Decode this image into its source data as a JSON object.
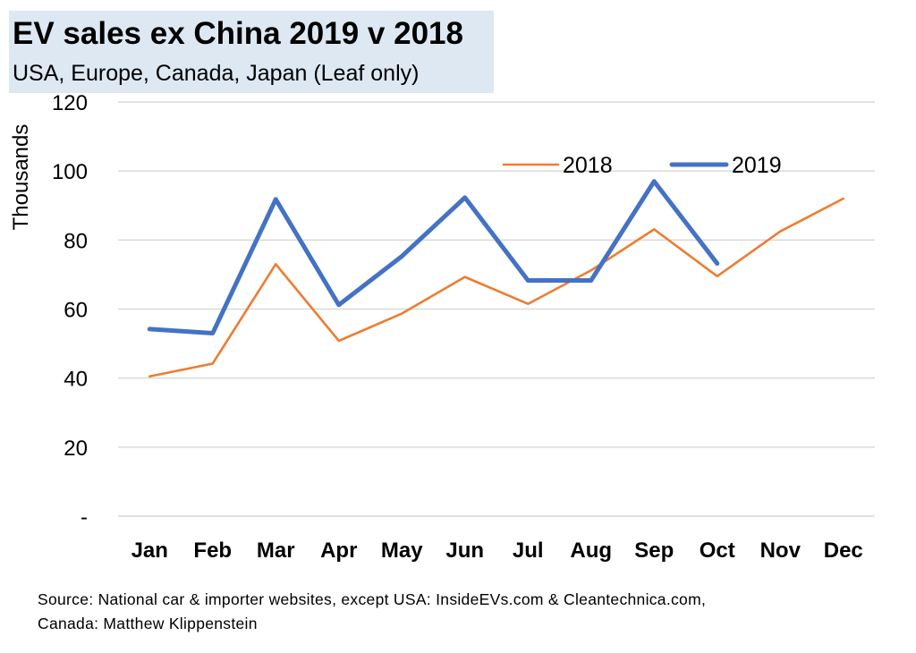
{
  "chart_data": {
    "type": "line",
    "title": "EV sales ex China 2019 v 2018",
    "subtitle": "USA, Europe,  Canada, Japan (Leaf only)",
    "ylabel": "Thousands",
    "xlabel": "",
    "ylim": [
      0,
      120
    ],
    "yticks": [
      0,
      20,
      40,
      60,
      80,
      100,
      120
    ],
    "ytick_labels": [
      "-",
      "20",
      "40",
      "60",
      "80",
      "100",
      "120"
    ],
    "categories": [
      "Jan",
      "Feb",
      "Mar",
      "Apr",
      "May",
      "Jun",
      "Jul",
      "Aug",
      "Sep",
      "Oct",
      "Nov",
      "Dec"
    ],
    "grid": true,
    "legend_position": "top-right",
    "series": [
      {
        "name": "2018",
        "color": "#ed7d31",
        "values": [
          40.5,
          44.2,
          73.0,
          50.8,
          58.7,
          69.3,
          61.5,
          71.2,
          83.1,
          69.5,
          82.5,
          92.0
        ]
      },
      {
        "name": "2019",
        "color": "#4472c4",
        "values": [
          54.2,
          53.0,
          91.8,
          61.2,
          75.3,
          92.3,
          68.3,
          68.3,
          97.0,
          73.2,
          null,
          null
        ]
      }
    ]
  },
  "source": {
    "line1": "Source: National car & importer websites, except USA: InsideEVs.com & Cleantechnica.com,",
    "line2": "Canada: Matthew Klippenstein"
  }
}
